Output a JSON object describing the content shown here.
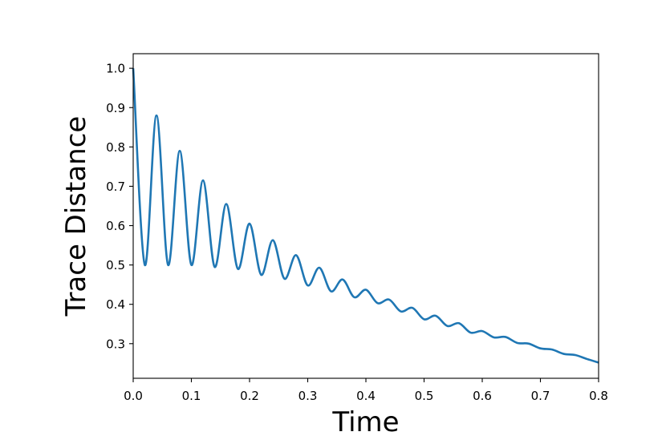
{
  "chart_data": {
    "type": "line",
    "title": "",
    "xlabel": "Time",
    "ylabel": "Trace Distance",
    "xlim": [
      0.0,
      0.8
    ],
    "ylim": [
      0.212,
      1.037
    ],
    "grid": false,
    "x_ticks": [
      0.0,
      0.1,
      0.2,
      0.3,
      0.4,
      0.5,
      0.6,
      0.7,
      0.8
    ],
    "x_tick_labels": [
      "0.0",
      "0.1",
      "0.2",
      "0.3",
      "0.4",
      "0.5",
      "0.6",
      "0.7",
      "0.8"
    ],
    "y_ticks": [
      0.3,
      0.4,
      0.5,
      0.6,
      0.7,
      0.8,
      0.9,
      1.0
    ],
    "y_tick_labels": [
      "0.3",
      "0.4",
      "0.5",
      "0.6",
      "0.7",
      "0.8",
      "0.9",
      "1.0"
    ],
    "series": [
      {
        "color": "#1f77b4",
        "x": [
          0.0,
          0.02,
          0.04,
          0.06,
          0.08,
          0.1,
          0.12,
          0.14,
          0.16,
          0.18,
          0.2,
          0.22,
          0.24,
          0.26,
          0.28,
          0.3,
          0.32,
          0.34,
          0.36,
          0.38,
          0.4,
          0.42,
          0.44,
          0.46,
          0.48,
          0.5,
          0.52,
          0.54,
          0.56,
          0.58,
          0.6,
          0.62,
          0.64,
          0.66,
          0.68,
          0.7,
          0.72,
          0.74,
          0.76,
          0.78,
          0.8
        ],
        "y": [
          1.0,
          0.5,
          0.88,
          0.5,
          0.79,
          0.5,
          0.715,
          0.495,
          0.655,
          0.49,
          0.605,
          0.475,
          0.563,
          0.465,
          0.525,
          0.448,
          0.493,
          0.433,
          0.463,
          0.418,
          0.437,
          0.403,
          0.412,
          0.382,
          0.391,
          0.362,
          0.371,
          0.345,
          0.352,
          0.328,
          0.332,
          0.316,
          0.317,
          0.302,
          0.3,
          0.288,
          0.285,
          0.274,
          0.271,
          0.261,
          0.252
        ]
      }
    ]
  }
}
